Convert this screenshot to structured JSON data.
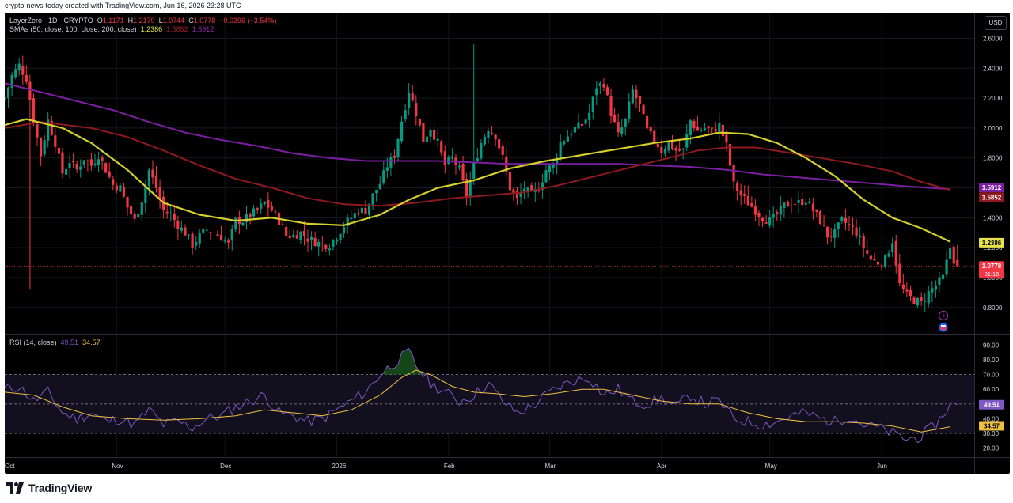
{
  "header": {
    "caption": "crypto-news-today created with TradingView.com, Jun 16, 2026 23:28 UTC"
  },
  "symbol": {
    "title": "LayerZero · 1D · CRYPTO",
    "o_label": "O",
    "o": "1.1171",
    "h_label": "H",
    "h": "1.2179",
    "l_label": "L",
    "l": "1.0744",
    "c_label": "C",
    "c": "1.0778",
    "change": "−0.0396 (−3.54%)"
  },
  "sma_legend": {
    "label": "SMAs (50, close, 100, close, 200, close)",
    "v50": "1.2386",
    "v100": "1.5852",
    "v200": "1.5912"
  },
  "rsi_legend": {
    "label": "RSI (14, close)",
    "rsi": "49.51",
    "ma": "34.57"
  },
  "currency_button": "USD",
  "badges": {
    "sma200": "1.5912",
    "sma100": "1.5852",
    "sma50": "1.2386",
    "price": "1.0778",
    "countdown": "31:16",
    "rsi": "49.51",
    "rsi_ma": "34.57"
  },
  "colors": {
    "up": "#089981",
    "down": "#f23645",
    "sma50": "#d4cf2a",
    "sma100": "#8e1a1f",
    "sma200": "#7b1fa2",
    "rsi": "#7e57c2",
    "rsi_ma": "#f0c040",
    "background": "#000000"
  },
  "brand": "TradingView",
  "chart_data": [
    {
      "type": "candlestick",
      "title": "LayerZero · 1D · CRYPTO",
      "ylim": [
        0.64,
        2.74
      ],
      "y_ticks": [
        "2.6000",
        "2.4000",
        "2.2000",
        "2.0000",
        "1.8000",
        "1.6000",
        "1.4000",
        "1.2000",
        "1.0000",
        "0.8000"
      ],
      "x_ticks": [
        "Oct",
        "Nov",
        "Dec",
        "2026",
        "Feb",
        "Mar",
        "Apr",
        "May",
        "Jun"
      ],
      "x_tick_positions": [
        0,
        31,
        61,
        92,
        123,
        151,
        182,
        212,
        243
      ],
      "x_range_days": [
        0,
        268
      ],
      "last_close": 1.0778,
      "anchors": [
        [
          0,
          2.2
        ],
        [
          2,
          2.35
        ],
        [
          4,
          2.42
        ],
        [
          6,
          2.33
        ],
        [
          8,
          2.05
        ],
        [
          10,
          1.82
        ],
        [
          12,
          2.05
        ],
        [
          14,
          1.9
        ],
        [
          16,
          1.7
        ],
        [
          18,
          1.78
        ],
        [
          20,
          1.72
        ],
        [
          22,
          1.8
        ],
        [
          24,
          1.75
        ],
        [
          26,
          1.82
        ],
        [
          28,
          1.72
        ],
        [
          30,
          1.62
        ],
        [
          32,
          1.6
        ],
        [
          34,
          1.47
        ],
        [
          36,
          1.38
        ],
        [
          38,
          1.52
        ],
        [
          40,
          1.72
        ],
        [
          42,
          1.6
        ],
        [
          44,
          1.45
        ],
        [
          46,
          1.42
        ],
        [
          48,
          1.35
        ],
        [
          50,
          1.3
        ],
        [
          52,
          1.22
        ],
        [
          54,
          1.28
        ],
        [
          56,
          1.32
        ],
        [
          58,
          1.3
        ],
        [
          60,
          1.27
        ],
        [
          62,
          1.22
        ],
        [
          64,
          1.38
        ],
        [
          66,
          1.38
        ],
        [
          68,
          1.42
        ],
        [
          70,
          1.45
        ],
        [
          72,
          1.5
        ],
        [
          74,
          1.45
        ],
        [
          76,
          1.38
        ],
        [
          78,
          1.28
        ],
        [
          80,
          1.28
        ],
        [
          82,
          1.3
        ],
        [
          84,
          1.26
        ],
        [
          86,
          1.24
        ],
        [
          88,
          1.22
        ],
        [
          90,
          1.22
        ],
        [
          92,
          1.28
        ],
        [
          94,
          1.35
        ],
        [
          96,
          1.4
        ],
        [
          98,
          1.45
        ],
        [
          100,
          1.45
        ],
        [
          102,
          1.55
        ],
        [
          104,
          1.63
        ],
        [
          106,
          1.75
        ],
        [
          108,
          1.82
        ],
        [
          110,
          2.05
        ],
        [
          112,
          2.25
        ],
        [
          114,
          2.1
        ],
        [
          116,
          1.92
        ],
        [
          118,
          2.0
        ],
        [
          120,
          1.9
        ],
        [
          122,
          1.75
        ],
        [
          124,
          1.8
        ],
        [
          126,
          1.72
        ],
        [
          128,
          1.55
        ],
        [
          130,
          1.75
        ],
        [
          132,
          1.9
        ],
        [
          134,
          2.0
        ],
        [
          136,
          1.95
        ],
        [
          138,
          1.8
        ],
        [
          140,
          1.6
        ],
        [
          142,
          1.52
        ],
        [
          144,
          1.6
        ],
        [
          146,
          1.55
        ],
        [
          148,
          1.6
        ],
        [
          150,
          1.72
        ],
        [
          152,
          1.75
        ],
        [
          154,
          1.9
        ],
        [
          156,
          1.95
        ],
        [
          158,
          2.0
        ],
        [
          160,
          2.02
        ],
        [
          162,
          2.1
        ],
        [
          164,
          2.28
        ],
        [
          166,
          2.3
        ],
        [
          168,
          2.1
        ],
        [
          170,
          1.95
        ],
        [
          172,
          2.05
        ],
        [
          174,
          2.25
        ],
        [
          176,
          2.15
        ],
        [
          178,
          1.98
        ],
        [
          180,
          1.92
        ],
        [
          182,
          1.85
        ],
        [
          184,
          1.9
        ],
        [
          186,
          1.85
        ],
        [
          188,
          1.85
        ],
        [
          190,
          2.05
        ],
        [
          192,
          1.98
        ],
        [
          194,
          2.0
        ],
        [
          196,
          1.98
        ],
        [
          198,
          2.02
        ],
        [
          200,
          1.88
        ],
        [
          202,
          1.62
        ],
        [
          204,
          1.55
        ],
        [
          206,
          1.5
        ],
        [
          208,
          1.45
        ],
        [
          210,
          1.4
        ],
        [
          212,
          1.38
        ],
        [
          214,
          1.42
        ],
        [
          216,
          1.48
        ],
        [
          218,
          1.5
        ],
        [
          220,
          1.5
        ],
        [
          222,
          1.52
        ],
        [
          224,
          1.45
        ],
        [
          226,
          1.38
        ],
        [
          228,
          1.28
        ],
        [
          230,
          1.3
        ],
        [
          232,
          1.38
        ],
        [
          234,
          1.35
        ],
        [
          236,
          1.3
        ],
        [
          238,
          1.2
        ],
        [
          240,
          1.12
        ],
        [
          242,
          1.1
        ],
        [
          244,
          1.12
        ],
        [
          246,
          1.25
        ],
        [
          248,
          0.95
        ],
        [
          250,
          0.88
        ],
        [
          252,
          0.85
        ],
        [
          254,
          0.83
        ],
        [
          256,
          0.9
        ],
        [
          258,
          0.95
        ],
        [
          260,
          1.0
        ],
        [
          262,
          1.2
        ],
        [
          263,
          1.1171
        ],
        [
          264,
          1.0778
        ]
      ],
      "sma50": [
        [
          0,
          2.02
        ],
        [
          6,
          2.06
        ],
        [
          16,
          2.0
        ],
        [
          24,
          1.9
        ],
        [
          34,
          1.72
        ],
        [
          44,
          1.5
        ],
        [
          54,
          1.42
        ],
        [
          64,
          1.38
        ],
        [
          74,
          1.4
        ],
        [
          84,
          1.36
        ],
        [
          94,
          1.35
        ],
        [
          104,
          1.42
        ],
        [
          112,
          1.52
        ],
        [
          120,
          1.6
        ],
        [
          130,
          1.65
        ],
        [
          140,
          1.73
        ],
        [
          150,
          1.78
        ],
        [
          160,
          1.82
        ],
        [
          170,
          1.86
        ],
        [
          180,
          1.9
        ],
        [
          190,
          1.93
        ],
        [
          198,
          1.97
        ],
        [
          206,
          1.96
        ],
        [
          214,
          1.9
        ],
        [
          222,
          1.8
        ],
        [
          230,
          1.68
        ],
        [
          238,
          1.52
        ],
        [
          246,
          1.4
        ],
        [
          254,
          1.33
        ],
        [
          262,
          1.24
        ]
      ],
      "sma100": [
        [
          0,
          2.0
        ],
        [
          10,
          2.04
        ],
        [
          24,
          2.0
        ],
        [
          34,
          1.94
        ],
        [
          44,
          1.85
        ],
        [
          54,
          1.75
        ],
        [
          64,
          1.66
        ],
        [
          74,
          1.6
        ],
        [
          84,
          1.53
        ],
        [
          94,
          1.49
        ],
        [
          104,
          1.48
        ],
        [
          114,
          1.5
        ],
        [
          124,
          1.53
        ],
        [
          134,
          1.55
        ],
        [
          144,
          1.57
        ],
        [
          154,
          1.62
        ],
        [
          164,
          1.68
        ],
        [
          174,
          1.74
        ],
        [
          184,
          1.8
        ],
        [
          192,
          1.85
        ],
        [
          200,
          1.87
        ],
        [
          208,
          1.87
        ],
        [
          216,
          1.84
        ],
        [
          226,
          1.8
        ],
        [
          236,
          1.76
        ],
        [
          246,
          1.71
        ],
        [
          254,
          1.64
        ],
        [
          262,
          1.5852
        ]
      ],
      "sma200": [
        [
          0,
          2.3
        ],
        [
          10,
          2.24
        ],
        [
          20,
          2.18
        ],
        [
          30,
          2.12
        ],
        [
          40,
          2.04
        ],
        [
          50,
          1.97
        ],
        [
          60,
          1.92
        ],
        [
          70,
          1.88
        ],
        [
          80,
          1.83
        ],
        [
          90,
          1.8
        ],
        [
          100,
          1.78
        ],
        [
          110,
          1.78
        ],
        [
          120,
          1.78
        ],
        [
          130,
          1.77
        ],
        [
          140,
          1.76
        ],
        [
          150,
          1.76
        ],
        [
          160,
          1.76
        ],
        [
          170,
          1.76
        ],
        [
          180,
          1.75
        ],
        [
          190,
          1.74
        ],
        [
          200,
          1.72
        ],
        [
          210,
          1.69
        ],
        [
          220,
          1.67
        ],
        [
          230,
          1.65
        ],
        [
          240,
          1.63
        ],
        [
          250,
          1.61
        ],
        [
          262,
          1.5912
        ]
      ]
    },
    {
      "type": "line",
      "title": "RSI (14, close)",
      "ylim": [
        15,
        95
      ],
      "y_ticks": [
        "90.00",
        "80.00",
        "70.00",
        "60.00",
        "50.00",
        "40.00",
        "30.00",
        "20.00"
      ],
      "bands": [
        30,
        50,
        70
      ],
      "rsi": [
        [
          0,
          60
        ],
        [
          4,
          62
        ],
        [
          8,
          52
        ],
        [
          12,
          58
        ],
        [
          16,
          44
        ],
        [
          20,
          40
        ],
        [
          24,
          44
        ],
        [
          28,
          38
        ],
        [
          32,
          40
        ],
        [
          36,
          36
        ],
        [
          40,
          46
        ],
        [
          44,
          36
        ],
        [
          48,
          38
        ],
        [
          52,
          34
        ],
        [
          56,
          40
        ],
        [
          60,
          42
        ],
        [
          64,
          48
        ],
        [
          68,
          52
        ],
        [
          72,
          56
        ],
        [
          76,
          44
        ],
        [
          80,
          42
        ],
        [
          84,
          38
        ],
        [
          88,
          40
        ],
        [
          92,
          46
        ],
        [
          96,
          52
        ],
        [
          100,
          58
        ],
        [
          104,
          70
        ],
        [
          108,
          78
        ],
        [
          112,
          85
        ],
        [
          114,
          76
        ],
        [
          118,
          64
        ],
        [
          122,
          58
        ],
        [
          126,
          52
        ],
        [
          130,
          56
        ],
        [
          134,
          64
        ],
        [
          138,
          52
        ],
        [
          142,
          44
        ],
        [
          146,
          48
        ],
        [
          150,
          56
        ],
        [
          154,
          62
        ],
        [
          158,
          66
        ],
        [
          162,
          68
        ],
        [
          166,
          56
        ],
        [
          170,
          60
        ],
        [
          174,
          52
        ],
        [
          178,
          50
        ],
        [
          182,
          54
        ],
        [
          186,
          48
        ],
        [
          190,
          56
        ],
        [
          194,
          50
        ],
        [
          198,
          52
        ],
        [
          202,
          40
        ],
        [
          206,
          38
        ],
        [
          210,
          36
        ],
        [
          214,
          38
        ],
        [
          218,
          42
        ],
        [
          222,
          44
        ],
        [
          226,
          40
        ],
        [
          230,
          38
        ],
        [
          234,
          42
        ],
        [
          238,
          36
        ],
        [
          242,
          34
        ],
        [
          246,
          30
        ],
        [
          250,
          26
        ],
        [
          254,
          28
        ],
        [
          258,
          36
        ],
        [
          262,
          49.51
        ]
      ],
      "ma": [
        [
          0,
          58
        ],
        [
          8,
          56
        ],
        [
          16,
          48
        ],
        [
          24,
          42
        ],
        [
          34,
          40
        ],
        [
          44,
          39
        ],
        [
          54,
          40
        ],
        [
          64,
          42
        ],
        [
          72,
          46
        ],
        [
          80,
          44
        ],
        [
          88,
          42
        ],
        [
          96,
          46
        ],
        [
          104,
          56
        ],
        [
          110,
          68
        ],
        [
          114,
          73
        ],
        [
          118,
          70
        ],
        [
          124,
          62
        ],
        [
          130,
          58
        ],
        [
          136,
          57
        ],
        [
          144,
          55
        ],
        [
          152,
          57
        ],
        [
          160,
          60
        ],
        [
          166,
          60
        ],
        [
          174,
          56
        ],
        [
          182,
          52
        ],
        [
          190,
          50
        ],
        [
          198,
          50
        ],
        [
          206,
          44
        ],
        [
          214,
          40
        ],
        [
          222,
          38
        ],
        [
          230,
          38
        ],
        [
          238,
          37
        ],
        [
          246,
          35
        ],
        [
          254,
          31
        ],
        [
          262,
          34.57
        ]
      ]
    }
  ]
}
